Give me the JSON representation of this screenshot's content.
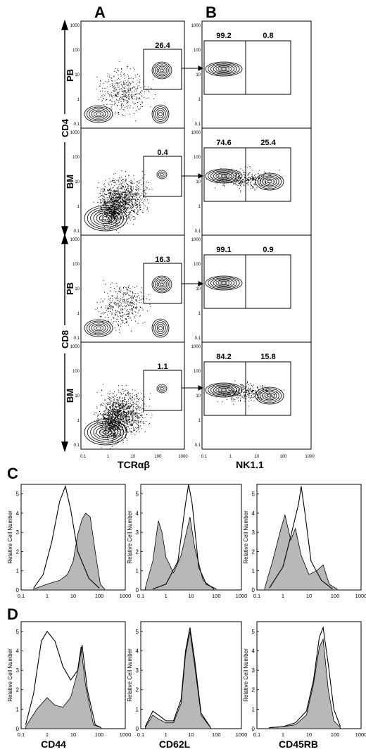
{
  "panels": {
    "A": "A",
    "B": "B",
    "C": "C",
    "D": "D"
  },
  "channels": {
    "cd4": "CD4",
    "cd8": "CD8",
    "tcr": "TCRαβ",
    "nk": "NK1.1"
  },
  "tissues": [
    "PB",
    "BM",
    "PB",
    "BM"
  ],
  "gate_A": [
    "26.4",
    "0.4",
    "16.3",
    "1.1"
  ],
  "gate_B": [
    [
      "99.2",
      "0.8"
    ],
    [
      "74.6",
      "25.4"
    ],
    [
      "99.1",
      "0.9"
    ],
    [
      "84.2",
      "15.8"
    ]
  ],
  "log_ticks": [
    "0.1",
    "1",
    "10",
    "100",
    "1000"
  ],
  "hist_ylabel": "Relative Cell Number",
  "hist_yticks": [
    "0",
    "1",
    "2",
    "3",
    "4",
    "5"
  ],
  "hist_xticks": [
    "0.1",
    "1",
    "10",
    "100",
    "1000"
  ],
  "row_D_xlabels": [
    "CD44",
    "CD62L",
    "CD45RB"
  ],
  "chart_data": [
    {
      "type": "area",
      "panel": "C",
      "x_scale": "log",
      "xlim": [
        0.1,
        1000
      ],
      "ylim": [
        0,
        5.5
      ],
      "charts": [
        {
          "open": [
            [
              0.3,
              0.1
            ],
            [
              0.7,
              0.8
            ],
            [
              1.5,
              2.5
            ],
            [
              3,
              4.6
            ],
            [
              5,
              5.4
            ],
            [
              8,
              4.2
            ],
            [
              15,
              2
            ],
            [
              40,
              0.6
            ],
            [
              100,
              0.1
            ]
          ],
          "filled": [
            [
              0.3,
              0.05
            ],
            [
              1,
              0.3
            ],
            [
              3,
              0.5
            ],
            [
              6,
              0.8
            ],
            [
              10,
              1.5
            ],
            [
              15,
              2.9
            ],
            [
              22,
              3.7
            ],
            [
              30,
              4.0
            ],
            [
              45,
              3.8
            ],
            [
              70,
              2.0
            ],
            [
              110,
              0.3
            ],
            [
              160,
              0.05
            ]
          ]
        },
        {
          "open": [
            [
              0.3,
              0.05
            ],
            [
              1,
              0.3
            ],
            [
              3,
              1.5
            ],
            [
              6,
              4.5
            ],
            [
              8,
              5.5
            ],
            [
              11,
              4.5
            ],
            [
              20,
              1.2
            ],
            [
              40,
              0.3
            ],
            [
              100,
              0.05
            ]
          ],
          "filled": [
            [
              0.15,
              0.1
            ],
            [
              0.3,
              1.5
            ],
            [
              0.5,
              3.6
            ],
            [
              0.7,
              3.0
            ],
            [
              1,
              1.7
            ],
            [
              2,
              0.9
            ],
            [
              4,
              1.8
            ],
            [
              6,
              2.8
            ],
            [
              9,
              3.8
            ],
            [
              14,
              2.2
            ],
            [
              30,
              0.5
            ],
            [
              80,
              0.05
            ]
          ]
        },
        {
          "open": [
            [
              0.3,
              0.1
            ],
            [
              1,
              1.2
            ],
            [
              2,
              2.8
            ],
            [
              4,
              4.5
            ],
            [
              5,
              5.4
            ],
            [
              7,
              4.0
            ],
            [
              12,
              1.5
            ],
            [
              30,
              0.5
            ],
            [
              80,
              0.05
            ]
          ],
          "filled": [
            [
              0.2,
              0.1
            ],
            [
              0.4,
              1.5
            ],
            [
              0.8,
              3.1
            ],
            [
              1.2,
              3.9
            ],
            [
              2,
              2.6
            ],
            [
              3,
              3.2
            ],
            [
              5,
              1.8
            ],
            [
              10,
              0.8
            ],
            [
              20,
              1.0
            ],
            [
              35,
              1.3
            ],
            [
              60,
              0.3
            ],
            [
              120,
              0.05
            ]
          ]
        }
      ]
    },
    {
      "type": "area",
      "panel": "D",
      "x_scale": "log",
      "xlim": [
        0.1,
        1000
      ],
      "ylim": [
        0,
        5.5
      ],
      "charts": [
        {
          "open": [
            [
              0.15,
              0.2
            ],
            [
              0.3,
              1.8
            ],
            [
              0.6,
              4.5
            ],
            [
              1,
              5.0
            ],
            [
              2,
              4.5
            ],
            [
              4,
              3.2
            ],
            [
              8,
              2.5
            ],
            [
              15,
              3.0
            ],
            [
              22,
              4.3
            ],
            [
              35,
              2.0
            ],
            [
              70,
              0.2
            ],
            [
              120,
              0.05
            ]
          ],
          "filled": [
            [
              0.15,
              0.1
            ],
            [
              0.4,
              1.0
            ],
            [
              1,
              1.6
            ],
            [
              2,
              1.2
            ],
            [
              4,
              1.1
            ],
            [
              8,
              1.6
            ],
            [
              14,
              2.8
            ],
            [
              20,
              4.2
            ],
            [
              30,
              2.2
            ],
            [
              60,
              0.2
            ],
            [
              120,
              0.05
            ]
          ]
        },
        {
          "open": [
            [
              0.15,
              0.1
            ],
            [
              0.3,
              0.9
            ],
            [
              0.5,
              0.7
            ],
            [
              1,
              0.4
            ],
            [
              2,
              0.4
            ],
            [
              4,
              1.5
            ],
            [
              6,
              4.0
            ],
            [
              9,
              5.2
            ],
            [
              14,
              3.5
            ],
            [
              25,
              0.8
            ],
            [
              60,
              0.05
            ]
          ],
          "filled": [
            [
              0.15,
              0.05
            ],
            [
              0.3,
              0.7
            ],
            [
              0.5,
              0.5
            ],
            [
              1,
              0.3
            ],
            [
              2,
              0.3
            ],
            [
              4,
              1.3
            ],
            [
              6,
              3.8
            ],
            [
              9,
              5.0
            ],
            [
              14,
              3.2
            ],
            [
              25,
              0.7
            ],
            [
              60,
              0.05
            ]
          ]
        },
        {
          "open": [
            [
              0.3,
              0.05
            ],
            [
              1,
              0.1
            ],
            [
              3,
              0.3
            ],
            [
              8,
              0.9
            ],
            [
              15,
              2.5
            ],
            [
              25,
              4.7
            ],
            [
              35,
              5.2
            ],
            [
              55,
              3.3
            ],
            [
              90,
              1.0
            ],
            [
              160,
              0.1
            ]
          ],
          "filled": [
            [
              0.3,
              0.05
            ],
            [
              1,
              0.1
            ],
            [
              3,
              0.2
            ],
            [
              8,
              0.7
            ],
            [
              15,
              2.3
            ],
            [
              25,
              4.2
            ],
            [
              35,
              4.6
            ],
            [
              55,
              2.0
            ],
            [
              90,
              0.4
            ],
            [
              160,
              0.05
            ]
          ]
        }
      ]
    }
  ]
}
